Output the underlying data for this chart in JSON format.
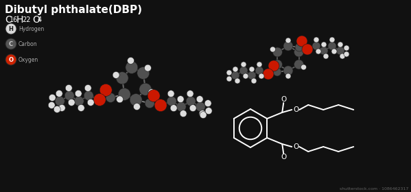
{
  "background_color": "#111111",
  "title": "Dibutyl phthalate(DBP)",
  "formula_color": "#ffffff",
  "legend_items": [
    {
      "symbol": "H",
      "label": "Hydrogen",
      "color": "#d8d8d8",
      "text_color": "#111111"
    },
    {
      "symbol": "C",
      "label": "Carbon",
      "color": "#555555",
      "text_color": "#cccccc"
    },
    {
      "symbol": "O",
      "label": "Oxygen",
      "color": "#cc2200",
      "text_color": "#ffffff"
    }
  ],
  "title_color": "#ffffff",
  "legend_label_color": "#aaaaaa",
  "watermark": "shutterstock.com · 1086462317",
  "watermark_color": "#777777",
  "stroke_color": "#ffffff",
  "gray_c": "#505050",
  "white_h": "#dddddd",
  "red_o": "#cc1800"
}
